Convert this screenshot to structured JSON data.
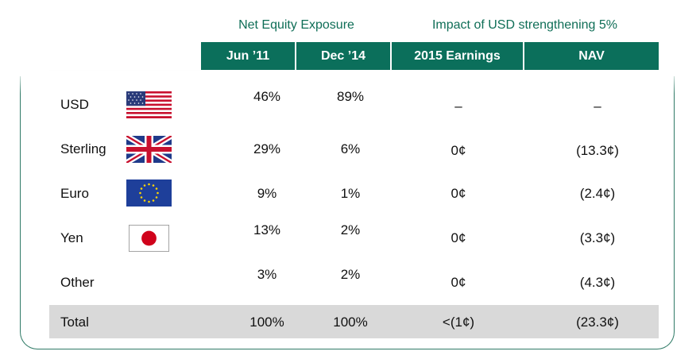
{
  "headers": {
    "group_net": "Net Equity Exposure",
    "group_impact": "Impact of USD strengthening 5%",
    "jun": "Jun ’11",
    "dec": "Dec ’14",
    "earnings": "2015 Earnings",
    "nav": "NAV"
  },
  "rows": [
    {
      "label": "USD",
      "jun": "46%",
      "dec": "89%",
      "earnings": "–",
      "nav": "–"
    },
    {
      "label": "Sterling",
      "jun": "29%",
      "dec": "6%",
      "earnings": "0¢",
      "nav": "(13.3¢)"
    },
    {
      "label": "Euro",
      "jun": "9%",
      "dec": "1%",
      "earnings": "0¢",
      "nav": "(2.4¢)"
    },
    {
      "label": "Yen",
      "jun": "13%",
      "dec": "2%",
      "earnings": "0¢",
      "nav": "(3.3¢)"
    },
    {
      "label": "Other",
      "jun": "3%",
      "dec": "2%",
      "earnings": "0¢",
      "nav": "(4.3¢)"
    }
  ],
  "total": {
    "label": "Total",
    "jun": "100%",
    "dec": "100%",
    "earnings": "<(1¢)",
    "nav": "(23.3¢)"
  },
  "colors": {
    "accent": "#0b6f5b",
    "title": "#0f6e57",
    "total_bg": "#d9d9d9"
  },
  "icons": [
    "us-flag-icon",
    "uk-flag-icon",
    "eu-flag-icon",
    "japan-flag-icon"
  ]
}
